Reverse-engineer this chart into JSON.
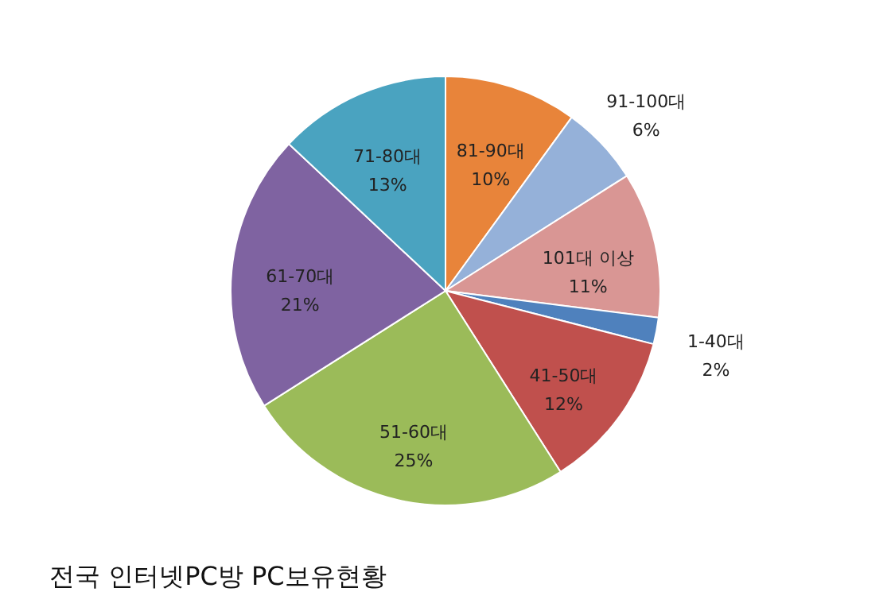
{
  "chart_data": {
    "type": "pie",
    "title": "전국 인터넷PC방 PC보유현황",
    "categories": [
      "81-90대",
      "91-100대",
      "101대 이상",
      "1-40대",
      "41-50대",
      "51-60대",
      "61-70대",
      "71-80대"
    ],
    "values": [
      10,
      6,
      11,
      2,
      12,
      25,
      21,
      13
    ],
    "value_labels": [
      "10%",
      "6%",
      "11%",
      "2%",
      "12%",
      "25%",
      "21%",
      "13%"
    ],
    "colors": [
      "#e8843a",
      "#95b1d9",
      "#d99694",
      "#4f81bd",
      "#c0504d",
      "#9bbb59",
      "#7f63a1",
      "#4aa3c0"
    ]
  }
}
